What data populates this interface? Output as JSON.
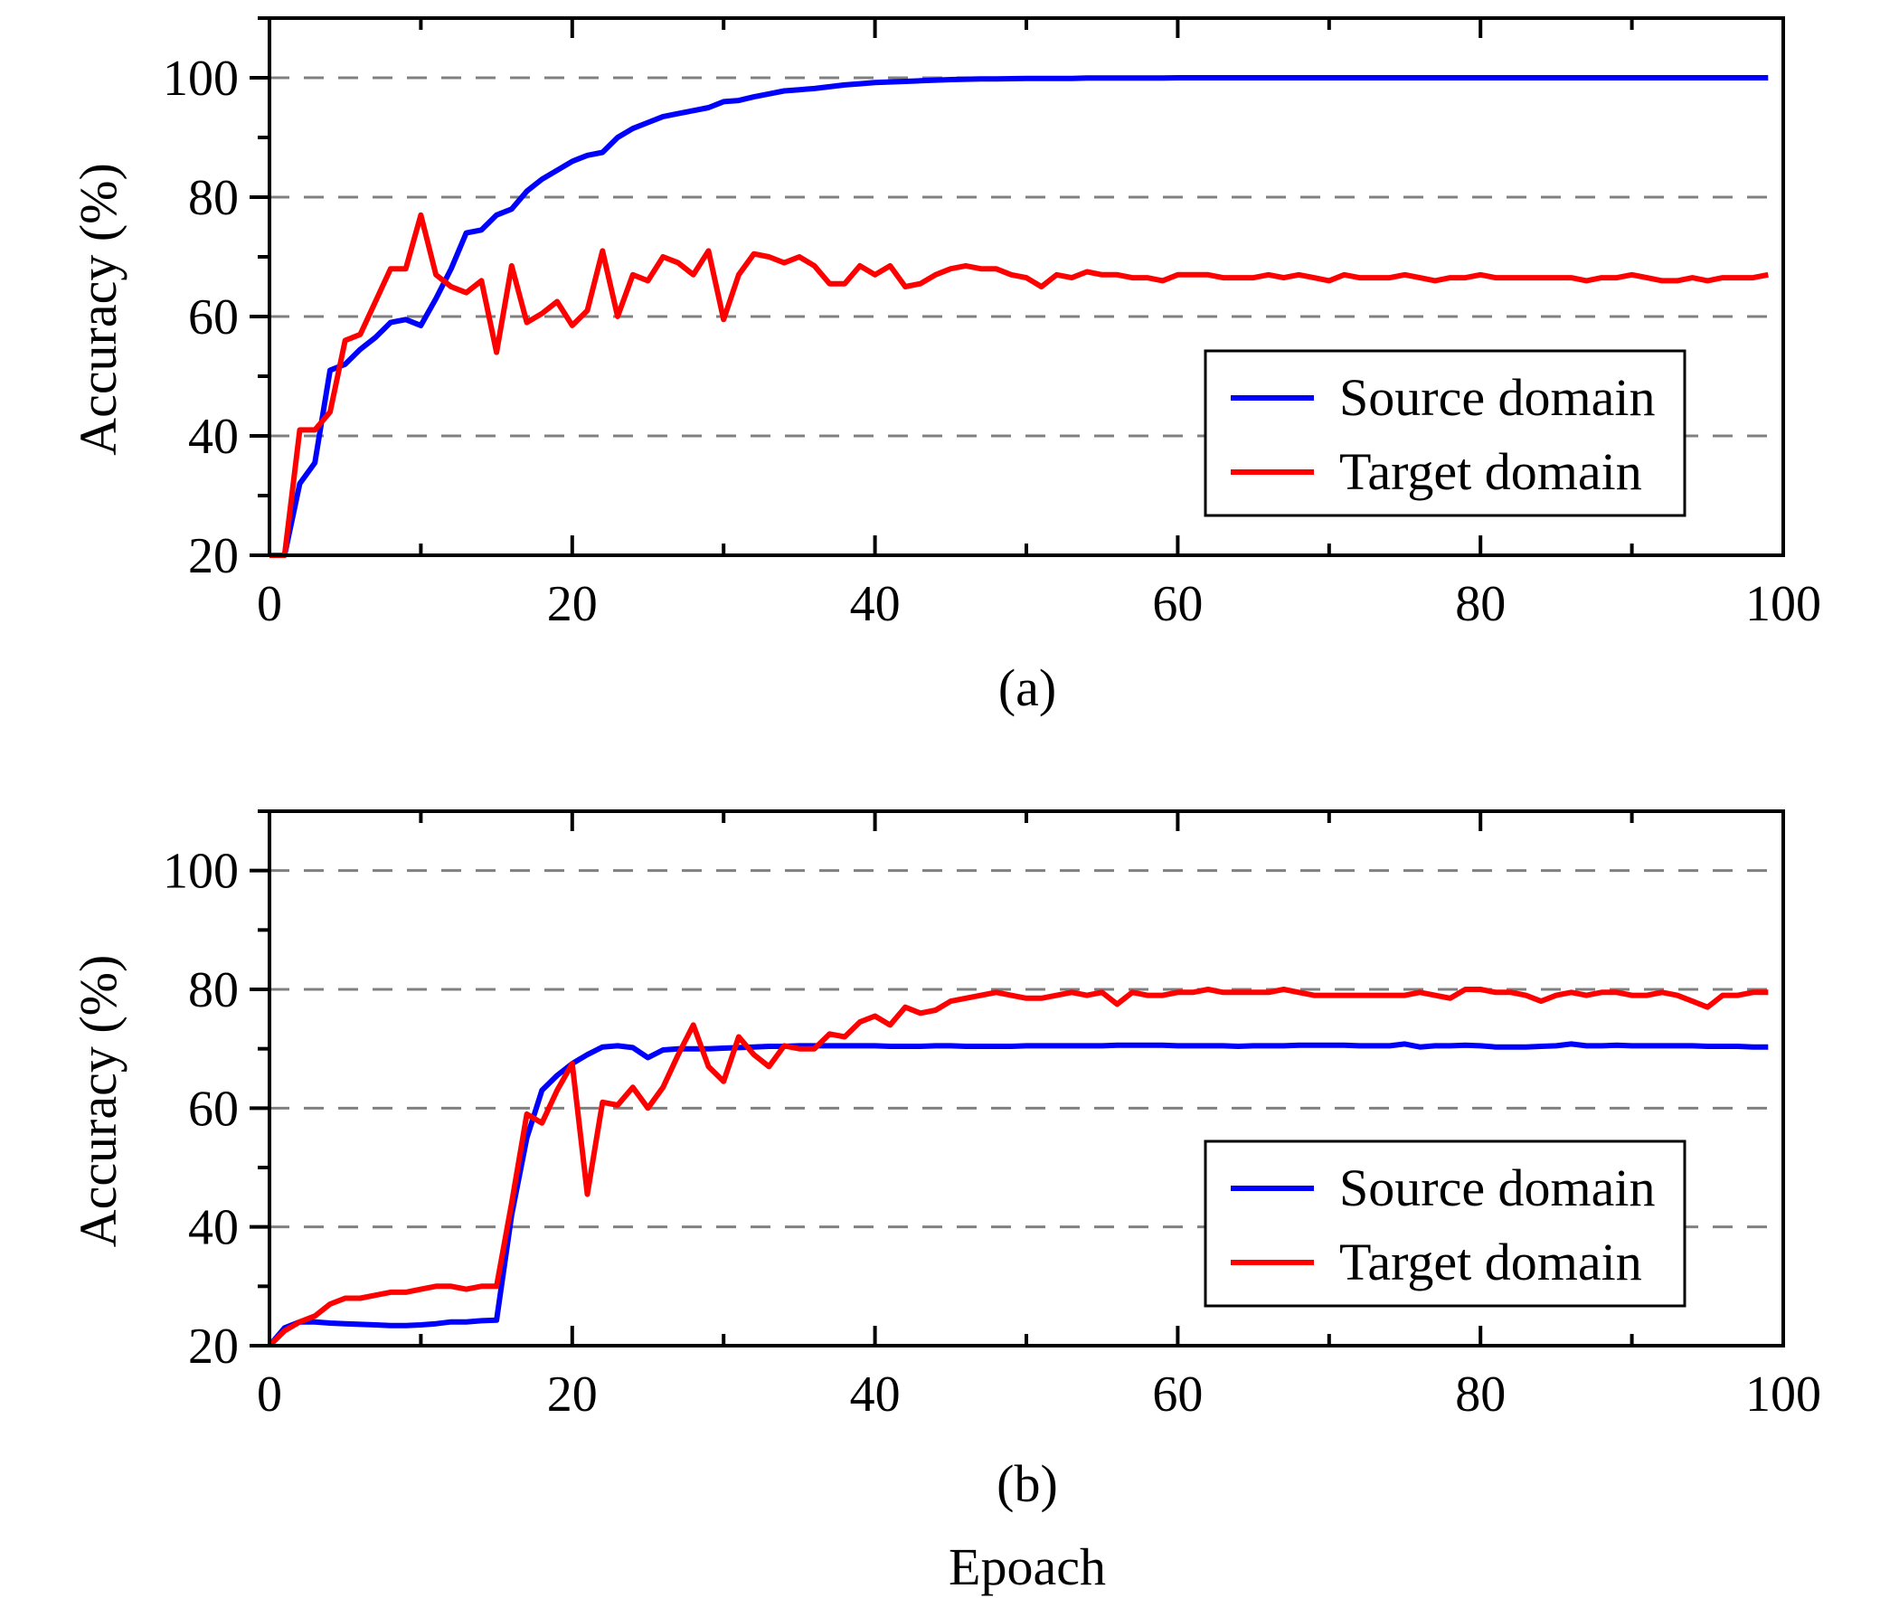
{
  "figure": {
    "xlabel": "Epoach",
    "colors": {
      "source": "#0000ff",
      "target": "#ff0000",
      "grid": "#808080",
      "axis": "#000000"
    },
    "chart_data": [
      {
        "type": "line",
        "caption": "(a)",
        "xlabel": "",
        "ylabel": "Accuracy (%)",
        "xlim": [
          0,
          100
        ],
        "ylim": [
          20,
          110
        ],
        "xticks": [
          "0",
          "20",
          "40",
          "60",
          "80",
          "100"
        ],
        "yticks": [
          "20",
          "40",
          "60",
          "80",
          "100"
        ],
        "grid": "horizontal dashed at 40, 60, 80, 100",
        "legend_position": "lower-right",
        "series": [
          {
            "name": "Source domain",
            "color": "#0000ff",
            "x": [
              0,
              1,
              2,
              3,
              4,
              5,
              6,
              7,
              8,
              9,
              10,
              11,
              12,
              13,
              14,
              15,
              16,
              17,
              18,
              19,
              20,
              21,
              22,
              23,
              24,
              25,
              26,
              27,
              28,
              29,
              30,
              31,
              32,
              33,
              34,
              35,
              36,
              37,
              38,
              39,
              40,
              41,
              42,
              43,
              44,
              45,
              46,
              47,
              48,
              49,
              50,
              51,
              52,
              53,
              54,
              55,
              56,
              57,
              58,
              59,
              60,
              61,
              62,
              63,
              64,
              65,
              66,
              67,
              68,
              69,
              70,
              71,
              72,
              73,
              74,
              75,
              76,
              77,
              78,
              79,
              80,
              81,
              82,
              83,
              84,
              85,
              86,
              87,
              88,
              89,
              90,
              91,
              92,
              93,
              94,
              95,
              96,
              97,
              98,
              99
            ],
            "y": [
              20,
              20,
              32,
              35.5,
              51,
              52,
              54.5,
              56.5,
              59,
              59.5,
              58.5,
              63,
              68,
              74,
              74.5,
              77,
              78,
              81,
              83,
              84.5,
              86,
              87,
              87.5,
              90,
              91.5,
              92.5,
              93.5,
              94,
              94.5,
              95,
              96,
              96.2,
              96.8,
              97.3,
              97.8,
              98,
              98.2,
              98.5,
              98.8,
              99,
              99.2,
              99.3,
              99.4,
              99.5,
              99.6,
              99.7,
              99.75,
              99.8,
              99.8,
              99.85,
              99.9,
              99.9,
              99.9,
              99.9,
              99.95,
              99.95,
              99.95,
              99.95,
              99.95,
              99.95,
              100,
              100,
              100,
              100,
              100,
              100,
              100,
              100,
              100,
              100,
              100,
              100,
              100,
              100,
              100,
              100,
              100,
              100,
              100,
              100,
              100,
              100,
              100,
              100,
              100,
              100,
              100,
              100,
              100,
              100,
              100,
              100,
              100,
              100,
              100,
              100,
              100,
              100,
              100,
              100
            ]
          },
          {
            "name": "Target domain",
            "color": "#ff0000",
            "x": [
              0,
              1,
              2,
              3,
              4,
              5,
              6,
              7,
              8,
              9,
              10,
              11,
              12,
              13,
              14,
              15,
              16,
              17,
              18,
              19,
              20,
              21,
              22,
              23,
              24,
              25,
              26,
              27,
              28,
              29,
              30,
              31,
              32,
              33,
              34,
              35,
              36,
              37,
              38,
              39,
              40,
              41,
              42,
              43,
              44,
              45,
              46,
              47,
              48,
              49,
              50,
              51,
              52,
              53,
              54,
              55,
              56,
              57,
              58,
              59,
              60,
              61,
              62,
              63,
              64,
              65,
              66,
              67,
              68,
              69,
              70,
              71,
              72,
              73,
              74,
              75,
              76,
              77,
              78,
              79,
              80,
              81,
              82,
              83,
              84,
              85,
              86,
              87,
              88,
              89,
              90,
              91,
              92,
              93,
              94,
              95,
              96,
              97,
              98,
              99
            ],
            "y": [
              20,
              20,
              41,
              41,
              44,
              56,
              57,
              62.5,
              68,
              68,
              77,
              67,
              65,
              64,
              66,
              54,
              68.5,
              59,
              60.5,
              62.5,
              58.5,
              61,
              71,
              60,
              67,
              66,
              70,
              69,
              67,
              71,
              59.5,
              67,
              70.5,
              70,
              69,
              70,
              68.5,
              65.5,
              65.5,
              68.5,
              67,
              68.5,
              65,
              65.5,
              67,
              68,
              68.5,
              68,
              68,
              67,
              66.5,
              65,
              67,
              66.5,
              67.5,
              67,
              67,
              66.5,
              66.5,
              66,
              67,
              67,
              67,
              66.5,
              66.5,
              66.5,
              67,
              66.5,
              67,
              66.5,
              66,
              67,
              66.5,
              66.5,
              66.5,
              67,
              66.5,
              66,
              66.5,
              66.5,
              67,
              66.5,
              66.5,
              66.5,
              66.5,
              66.5,
              66.5,
              66,
              66.5,
              66.5,
              67,
              66.5,
              66,
              66,
              66.5,
              66,
              66.5,
              66.5,
              66.5,
              67
            ]
          }
        ]
      },
      {
        "type": "line",
        "caption": "(b)",
        "xlabel": "Epoach",
        "ylabel": "Accuracy (%)",
        "xlim": [
          0,
          100
        ],
        "ylim": [
          20,
          110
        ],
        "xticks": [
          "0",
          "20",
          "40",
          "60",
          "80",
          "100"
        ],
        "yticks": [
          "20",
          "40",
          "60",
          "80",
          "100"
        ],
        "grid": "horizontal dashed at 40, 60, 80, 100",
        "legend_position": "lower-right",
        "series": [
          {
            "name": "Source domain",
            "color": "#0000ff",
            "x": [
              0,
              1,
              2,
              3,
              4,
              5,
              6,
              7,
              8,
              9,
              10,
              11,
              12,
              13,
              14,
              15,
              16,
              17,
              18,
              19,
              20,
              21,
              22,
              23,
              24,
              25,
              26,
              27,
              28,
              29,
              30,
              31,
              32,
              33,
              34,
              35,
              36,
              37,
              38,
              39,
              40,
              41,
              42,
              43,
              44,
              45,
              46,
              47,
              48,
              49,
              50,
              51,
              52,
              53,
              54,
              55,
              56,
              57,
              58,
              59,
              60,
              61,
              62,
              63,
              64,
              65,
              66,
              67,
              68,
              69,
              70,
              71,
              72,
              73,
              74,
              75,
              76,
              77,
              78,
              79,
              80,
              81,
              82,
              83,
              84,
              85,
              86,
              87,
              88,
              89,
              90,
              91,
              92,
              93,
              94,
              95,
              96,
              97,
              98,
              99
            ],
            "y": [
              20,
              23,
              24,
              24,
              23.8,
              23.7,
              23.6,
              23.5,
              23.4,
              23.4,
              23.5,
              23.7,
              24,
              24,
              24.2,
              24.3,
              42,
              55,
              63,
              65.5,
              67.5,
              69,
              70.3,
              70.5,
              70.2,
              68.5,
              69.8,
              70,
              70,
              70,
              70.1,
              70.2,
              70.3,
              70.4,
              70.4,
              70.5,
              70.5,
              70.5,
              70.5,
              70.5,
              70.5,
              70.4,
              70.4,
              70.4,
              70.5,
              70.5,
              70.4,
              70.4,
              70.4,
              70.4,
              70.5,
              70.5,
              70.5,
              70.5,
              70.5,
              70.5,
              70.6,
              70.6,
              70.6,
              70.6,
              70.5,
              70.5,
              70.5,
              70.5,
              70.4,
              70.5,
              70.5,
              70.5,
              70.6,
              70.6,
              70.6,
              70.6,
              70.5,
              70.5,
              70.5,
              70.8,
              70.3,
              70.5,
              70.5,
              70.6,
              70.5,
              70.3,
              70.3,
              70.3,
              70.4,
              70.5,
              70.8,
              70.5,
              70.5,
              70.6,
              70.5,
              70.5,
              70.5,
              70.5,
              70.5,
              70.4,
              70.4,
              70.4,
              70.3,
              70.3
            ]
          },
          {
            "name": "Target domain",
            "color": "#ff0000",
            "x": [
              0,
              1,
              2,
              3,
              4,
              5,
              6,
              7,
              8,
              9,
              10,
              11,
              12,
              13,
              14,
              15,
              16,
              17,
              18,
              19,
              20,
              21,
              22,
              23,
              24,
              25,
              26,
              27,
              28,
              29,
              30,
              31,
              32,
              33,
              34,
              35,
              36,
              37,
              38,
              39,
              40,
              41,
              42,
              43,
              44,
              45,
              46,
              47,
              48,
              49,
              50,
              51,
              52,
              53,
              54,
              55,
              56,
              57,
              58,
              59,
              60,
              61,
              62,
              63,
              64,
              65,
              66,
              67,
              68,
              69,
              70,
              71,
              72,
              73,
              74,
              75,
              76,
              77,
              78,
              79,
              80,
              81,
              82,
              83,
              84,
              85,
              86,
              87,
              88,
              89,
              90,
              91,
              92,
              93,
              94,
              95,
              96,
              97,
              98,
              99
            ],
            "y": [
              20,
              22.5,
              24,
              25,
              27,
              28,
              28,
              28.5,
              29,
              29,
              29.5,
              30,
              30,
              29.5,
              30,
              30,
              44,
              59,
              57.5,
              63,
              67.5,
              45.5,
              61,
              60.5,
              63.5,
              60,
              63.5,
              69,
              74,
              67,
              64.5,
              72,
              69,
              67,
              70.5,
              70,
              70,
              72.5,
              72,
              74.5,
              75.5,
              74,
              77,
              76,
              76.5,
              78,
              78.5,
              79,
              79.5,
              79,
              78.5,
              78.5,
              79,
              79.5,
              79,
              79.5,
              77.5,
              79.5,
              79,
              79,
              79.5,
              79.5,
              80,
              79.5,
              79.5,
              79.5,
              79.5,
              80,
              79.5,
              79,
              79,
              79,
              79,
              79,
              79,
              79,
              79.5,
              79,
              78.5,
              80,
              80,
              79.5,
              79.5,
              79,
              78,
              79,
              79.5,
              79,
              79.5,
              79.5,
              79,
              79,
              79.5,
              79,
              78,
              77,
              79,
              79,
              79.5,
              79.5
            ]
          }
        ]
      }
    ]
  }
}
